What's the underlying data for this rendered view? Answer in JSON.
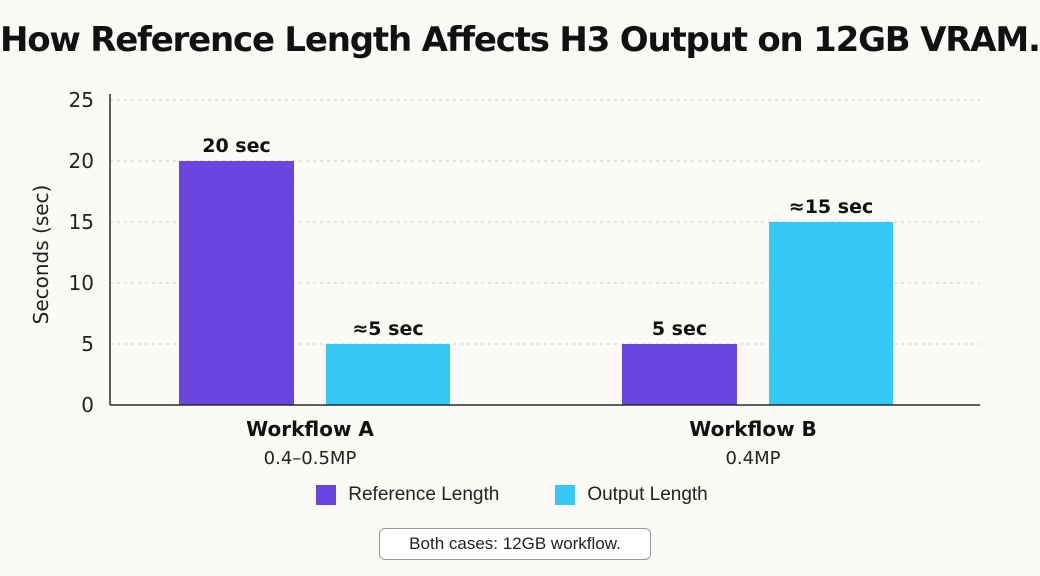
{
  "chart_data": {
    "type": "bar",
    "title": "How Reference Length Affects H3 Output on 12GB VRAM.",
    "ylabel": "Seconds (sec)",
    "xlabel": "",
    "ylim": [
      0,
      25
    ],
    "yticks": [
      0,
      5,
      10,
      15,
      20,
      25
    ],
    "grid": true,
    "legend_position": "bottom",
    "categories": [
      {
        "name": "Workflow A",
        "sub": "0.4–0.5MP"
      },
      {
        "name": "Workflow B",
        "sub": "0.4MP"
      }
    ],
    "series": [
      {
        "name": "Reference Length",
        "color": "#6a45e0",
        "values": [
          20,
          5
        ],
        "labels": [
          "20 sec",
          "5 sec"
        ]
      },
      {
        "name": "Output Length",
        "color": "#35c8f4",
        "values": [
          5,
          15
        ],
        "labels": [
          "≈5 sec",
          "≈15 sec"
        ]
      }
    ]
  },
  "footnote": "Both cases: 12GB workflow."
}
